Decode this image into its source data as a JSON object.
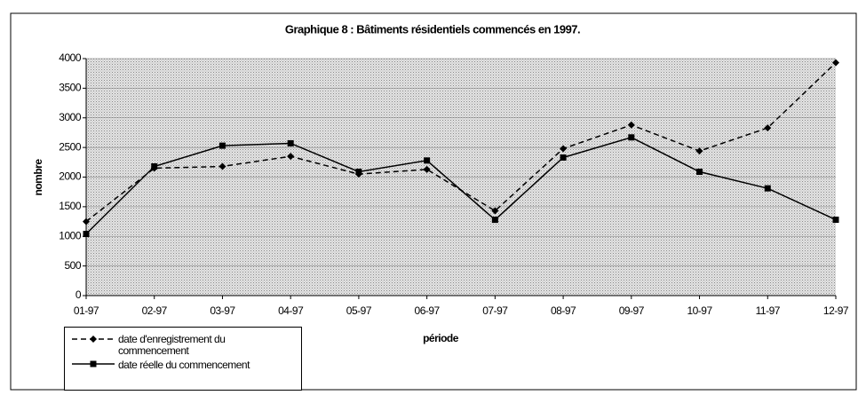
{
  "chart_data": {
    "type": "line",
    "title": "Graphique 8 : Bâtiments résidentiels commencés en 1997.",
    "x_label": "période",
    "y_label": "nombre",
    "categories": [
      "01-97",
      "02-97",
      "03-97",
      "04-97",
      "05-97",
      "06-97",
      "07-97",
      "08-97",
      "09-97",
      "10-97",
      "11-97",
      "12-97"
    ],
    "series": [
      {
        "name": "date d'enregistrement du commencement",
        "color": "#000000",
        "line_style": "dashed",
        "marker": "diamond",
        "values": [
          1250,
          2150,
          2180,
          2350,
          2050,
          2130,
          1430,
          2480,
          2880,
          2440,
          2830,
          3930
        ]
      },
      {
        "name": "date réelle du commencement",
        "color": "#000000",
        "line_style": "solid",
        "marker": "square",
        "values": [
          1040,
          2180,
          2530,
          2570,
          2090,
          2280,
          1280,
          2330,
          2670,
          2090,
          1810,
          1280
        ]
      }
    ],
    "ylim": [
      0,
      4000
    ],
    "yticks": [
      0,
      500,
      1000,
      1500,
      2000,
      2500,
      3000,
      3500,
      4000
    ],
    "grid": true,
    "legend": "bottom-left"
  }
}
